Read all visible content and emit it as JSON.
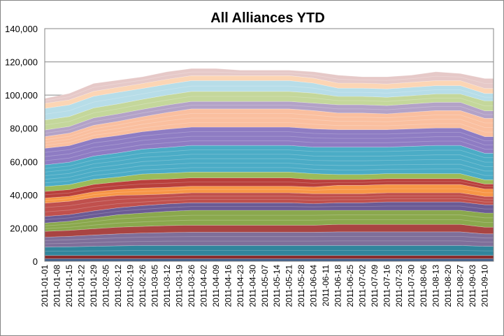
{
  "chart_data": {
    "type": "area",
    "stacked": true,
    "title": "All Alliances YTD",
    "xlabel": "",
    "ylabel": "",
    "ylim": [
      0,
      140000
    ],
    "yticks": [
      0,
      20000,
      40000,
      60000,
      80000,
      100000,
      120000,
      140000
    ],
    "ytick_labels": [
      "0",
      "20,000",
      "40,000",
      "60,000",
      "80,000",
      "100,000",
      "120,000",
      "140,000"
    ],
    "xtick_labels": [
      "2011-01-01",
      "2011-01-08",
      "2011-01-15",
      "2011-01-22",
      "2011-01-29",
      "2011-02-05",
      "2011-02-12",
      "2011-02-19",
      "2011-02-26",
      "2011-03-05",
      "2011-03-12",
      "2011-03-19",
      "2011-03-26",
      "2011-04-02",
      "2011-04-09",
      "2011-04-16",
      "2011-04-23",
      "2011-04-30",
      "2011-05-07",
      "2011-05-14",
      "2011-05-21",
      "2011-05-28",
      "2011-06-04",
      "2011-06-11",
      "2011-06-18",
      "2011-06-25",
      "2011-07-02",
      "2011-07-09",
      "2011-07-16",
      "2011-07-23",
      "2011-07-30",
      "2011-08-06",
      "2011-08-13",
      "2011-08-20",
      "2011-08-27",
      "2011-09-03",
      "2011-09-10"
    ],
    "x": [
      "2011-01-01",
      "2011-01-15",
      "2011-01-29",
      "2011-02-12",
      "2011-02-26",
      "2011-03-12",
      "2011-03-26",
      "2011-04-09",
      "2011-04-23",
      "2011-05-07",
      "2011-05-21",
      "2011-06-04",
      "2011-06-18",
      "2011-07-02",
      "2011-07-16",
      "2011-07-30",
      "2011-08-13",
      "2011-08-27",
      "2011-09-10",
      "2011-09-15"
    ],
    "grid": true,
    "legend": "none",
    "series": [
      {
        "color": "#3b5e8c",
        "values": [
          1500,
          1500,
          1500,
          1500,
          1500,
          1500,
          1500,
          1500,
          1500,
          1500,
          1500,
          1500,
          1500,
          1500,
          1500,
          1500,
          1500,
          1500,
          1500,
          1500
        ]
      },
      {
        "color": "#8b2e2e",
        "values": [
          2000,
          2000,
          2000,
          2000,
          2000,
          2000,
          2000,
          2000,
          2000,
          2000,
          2000,
          2000,
          2000,
          2000,
          2000,
          2000,
          2000,
          2000,
          2000,
          2000
        ]
      },
      {
        "color": "#31859c",
        "values": [
          5000,
          5200,
          5500,
          5800,
          6000,
          6000,
          6000,
          6000,
          6000,
          6000,
          6000,
          6000,
          6000,
          6000,
          6000,
          6000,
          6000,
          6000,
          5500,
          5500
        ]
      },
      {
        "color": "#7f6f9a",
        "values": [
          6000,
          6300,
          6800,
          7200,
          7500,
          7800,
          8000,
          8000,
          8000,
          8000,
          8000,
          8000,
          8200,
          8200,
          8200,
          8200,
          8200,
          8200,
          7500,
          7500
        ]
      },
      {
        "color": "#a94442",
        "values": [
          3500,
          3600,
          3800,
          4000,
          4000,
          4200,
          4200,
          4200,
          4200,
          4200,
          4200,
          4200,
          4500,
          4500,
          4500,
          4500,
          4500,
          4500,
          4000,
          4000
        ]
      },
      {
        "color": "#8aa84d",
        "values": [
          5000,
          5500,
          6500,
          7500,
          8000,
          8500,
          9000,
          9000,
          9000,
          9000,
          9000,
          9000,
          8500,
          8500,
          8500,
          8500,
          8500,
          8500,
          8500,
          8500
        ]
      },
      {
        "color": "#6b5b95",
        "values": [
          4000,
          4000,
          4200,
          4200,
          4500,
          4500,
          4500,
          4500,
          4500,
          4500,
          4500,
          4000,
          4500,
          4500,
          5000,
          5000,
          5000,
          5000,
          5000,
          5000
        ]
      },
      {
        "color": "#c0504d",
        "values": [
          8000,
          8000,
          8000,
          7500,
          6500,
          6000,
          6000,
          6000,
          6000,
          6000,
          6000,
          6000,
          5500,
          5500,
          5500,
          5500,
          5500,
          5500,
          5000,
          5000
        ]
      },
      {
        "color": "#f79646",
        "values": [
          3000,
          3000,
          3500,
          3500,
          4000,
          4000,
          4000,
          4000,
          4000,
          4000,
          4000,
          4000,
          5000,
          5000,
          5000,
          5000,
          5000,
          5000,
          4500,
          4500
        ]
      },
      {
        "color": "#b9403c",
        "values": [
          4000,
          4000,
          4500,
          4500,
          5000,
          5000,
          5000,
          5000,
          5000,
          5000,
          5000,
          4500,
          3500,
          3500,
          3500,
          3500,
          3500,
          3500,
          3000,
          3000
        ]
      },
      {
        "color": "#9bbb59",
        "values": [
          3000,
          3000,
          3000,
          3000,
          3500,
          3500,
          3500,
          3500,
          3500,
          3500,
          3500,
          3500,
          3000,
          3000,
          3000,
          3000,
          3000,
          3000,
          2500,
          2500
        ]
      },
      {
        "color": "#4bacc6",
        "values": [
          13000,
          13500,
          14000,
          14500,
          15000,
          15500,
          16000,
          16000,
          16000,
          16000,
          16000,
          16000,
          16500,
          16500,
          16000,
          16500,
          17000,
          17000,
          16000,
          16000
        ]
      },
      {
        "color": "#8e7cc3",
        "values": [
          10000,
          10000,
          10500,
          10500,
          10500,
          11000,
          11000,
          11000,
          11000,
          11000,
          11000,
          11000,
          10500,
          10500,
          10500,
          10500,
          10500,
          10500,
          10000,
          10000
        ]
      },
      {
        "color": "#fabf9f",
        "values": [
          7000,
          7500,
          8000,
          8500,
          9000,
          10000,
          11000,
          11000,
          11000,
          11000,
          11000,
          11000,
          10000,
          10000,
          9500,
          10000,
          10500,
          10500,
          11000,
          11000
        ]
      },
      {
        "color": "#b3a2c7",
        "values": [
          4000,
          4000,
          4500,
          4500,
          4500,
          4500,
          4500,
          4500,
          4500,
          4500,
          4500,
          4500,
          5000,
          5000,
          5000,
          5000,
          5000,
          5000,
          4500,
          4500
        ]
      },
      {
        "color": "#c4d79b",
        "values": [
          6000,
          6000,
          6000,
          6000,
          6000,
          6000,
          6000,
          6000,
          6000,
          6000,
          6000,
          6000,
          5000,
          5000,
          5000,
          5000,
          5000,
          5000,
          6000,
          6000
        ]
      },
      {
        "color": "#b7dde8",
        "values": [
          7000,
          7000,
          7000,
          7000,
          6500,
          6500,
          6500,
          6500,
          6500,
          6500,
          6500,
          6000,
          5000,
          5000,
          5000,
          5000,
          5000,
          5000,
          4500,
          4500
        ]
      },
      {
        "color": "#fcd5b4",
        "values": [
          3000,
          3000,
          3000,
          3000,
          3000,
          3000,
          3000,
          3000,
          3000,
          3000,
          3000,
          3000,
          3000,
          3000,
          3000,
          3000,
          3000,
          3000,
          3000,
          3000
        ]
      },
      {
        "color": "#e6c9c8",
        "values": [
          3000,
          3900,
          4700,
          4300,
          4000,
          4500,
          4300,
          4300,
          3300,
          3300,
          3300,
          3800,
          4800,
          3800,
          4300,
          4300,
          5300,
          4300,
          6000,
          6000
        ]
      }
    ]
  }
}
